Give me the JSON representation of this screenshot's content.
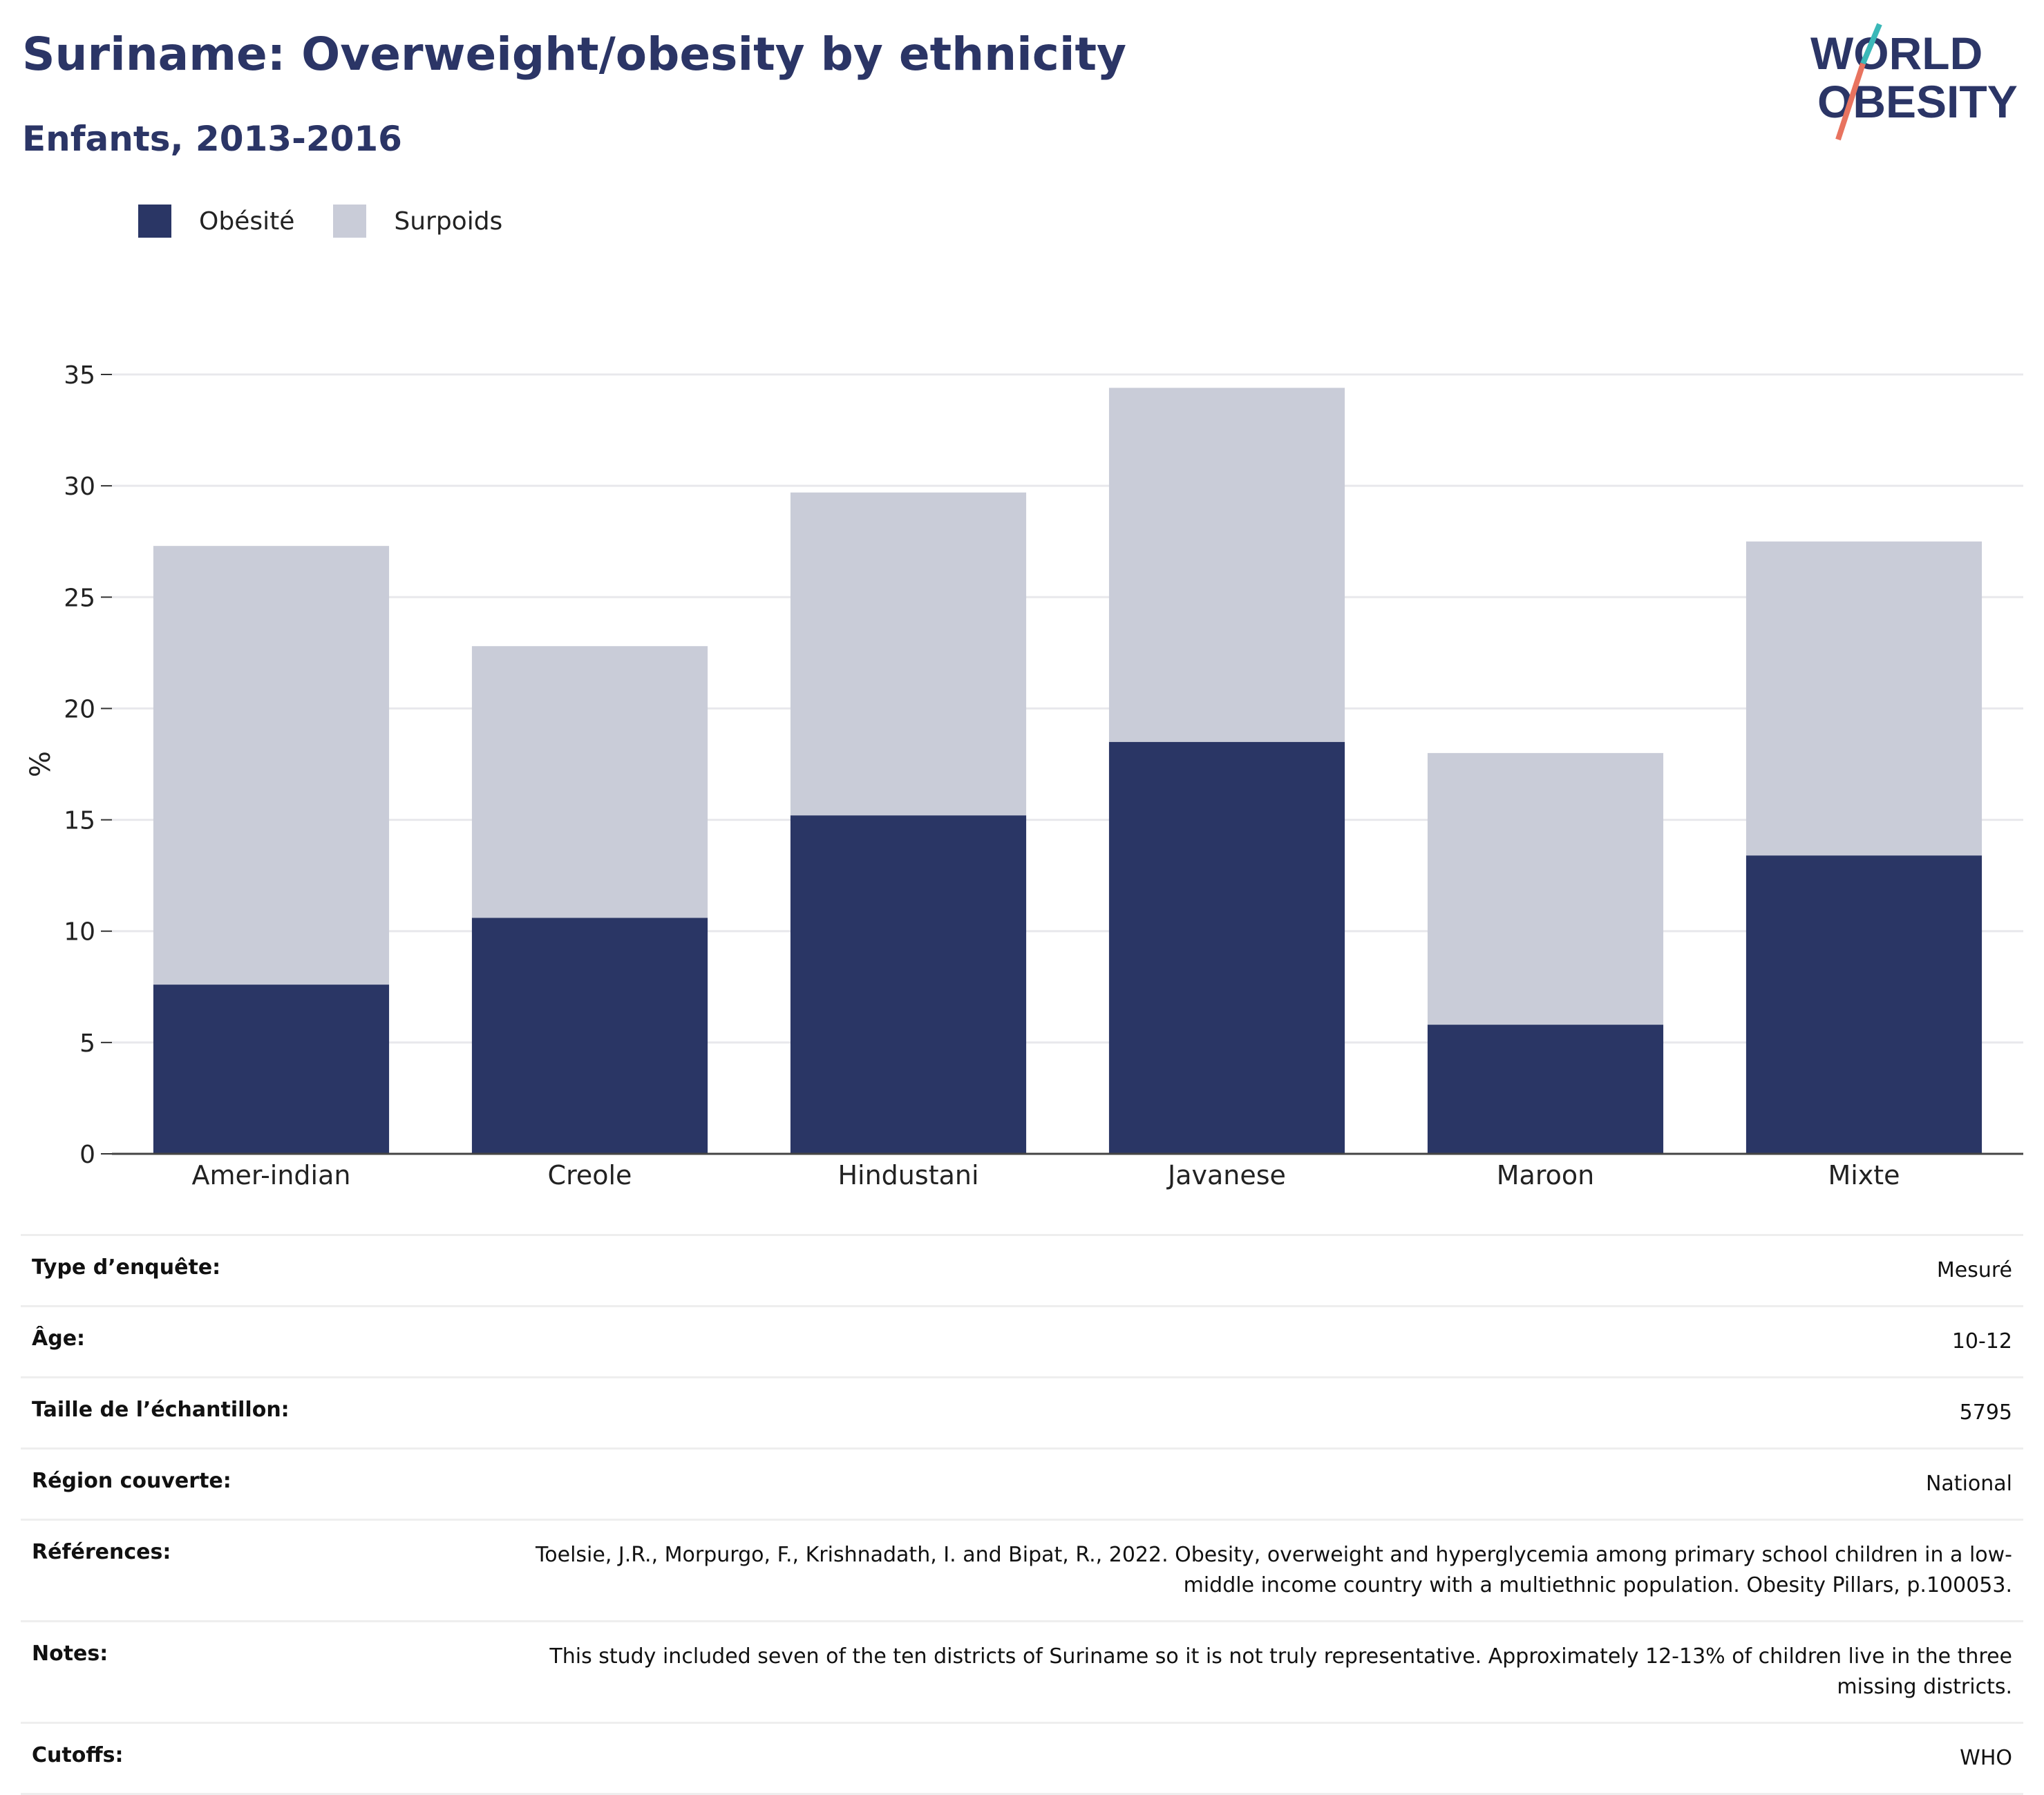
{
  "header": {
    "title": "Suriname: Overweight/obesity by ethnicity",
    "subtitle": "Enfants, 2013-2016"
  },
  "logo": {
    "line1": "WORLD",
    "line2": "OBESITY"
  },
  "colors": {
    "obesity": "#2a3665",
    "overweight": "#c9ccd8",
    "title": "#2b3566",
    "logo_teal": "#3bb8b8",
    "logo_coral": "#e8735f"
  },
  "legend": [
    {
      "label": "Obésité",
      "color": "#2a3665"
    },
    {
      "label": "Surpoids",
      "color": "#c9ccd8"
    }
  ],
  "chart_data": {
    "type": "bar",
    "stacked": true,
    "categories": [
      "Amer-indian",
      "Creole",
      "Hindustani",
      "Javanese",
      "Maroon",
      "Mixte"
    ],
    "series": [
      {
        "name": "Obésité",
        "values": [
          7.6,
          10.6,
          15.2,
          18.5,
          5.8,
          13.4
        ]
      },
      {
        "name": "Surpoids",
        "values": [
          19.7,
          12.2,
          14.5,
          15.9,
          12.2,
          14.1
        ]
      }
    ],
    "ylabel": "%",
    "ylim": [
      0,
      35
    ],
    "yticks": [
      0,
      5,
      10,
      15,
      20,
      25,
      30,
      35
    ],
    "grid": true,
    "legend_position": "top-left"
  },
  "info": [
    {
      "label": "Type d’enquête:",
      "value": "Mesuré"
    },
    {
      "label": "Âge:",
      "value": "10-12"
    },
    {
      "label": "Taille de l’échantillon:",
      "value": "5795"
    },
    {
      "label": "Région couverte:",
      "value": "National"
    },
    {
      "label": "Références:",
      "value": "Toelsie, J.R., Morpurgo, F., Krishnadath, I. and Bipat, R., 2022. Obesity, overweight and hyperglycemia among primary school children in a low-middle income country with a multiethnic population. Obesity Pillars, p.100053."
    },
    {
      "label": "Notes:",
      "value": "This study included seven of the ten districts of Suriname so it is not truly representative. Approximately 12-13% of children live in the three missing districts."
    },
    {
      "label": "Cutoffs:",
      "value": "WHO"
    }
  ]
}
